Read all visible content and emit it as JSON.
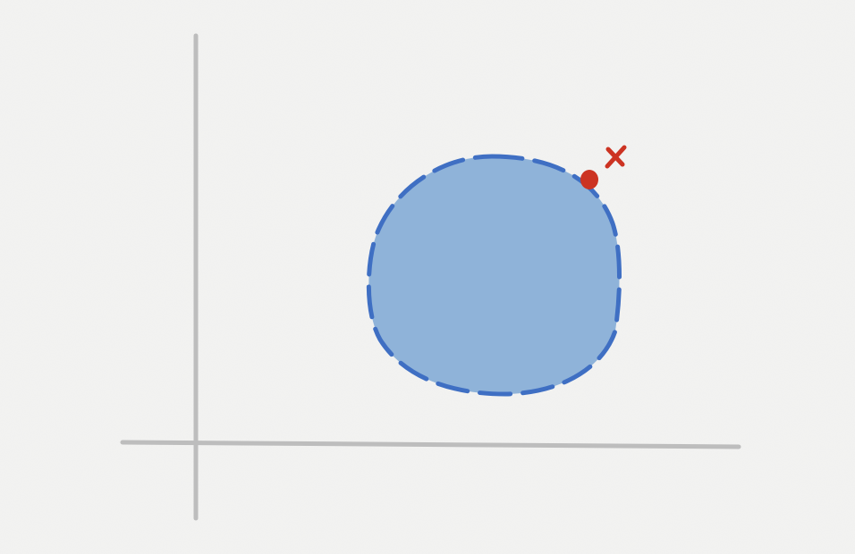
{
  "diagram": {
    "colors": {
      "background": "#f3f3f2",
      "axes": "#bdbdbd",
      "region_fill": "#8fb3d9",
      "region_outline": "#3f6fc3",
      "marker": "#cc3322"
    },
    "axes": {
      "x_axis": "horizontal-axis",
      "y_axis": "vertical-axis"
    },
    "region": {
      "shape": "blob",
      "outline_style": "dashed"
    },
    "markers": [
      {
        "kind": "dot",
        "icon": "dot-marker"
      },
      {
        "kind": "cross",
        "icon": "x-mark-icon"
      }
    ]
  }
}
